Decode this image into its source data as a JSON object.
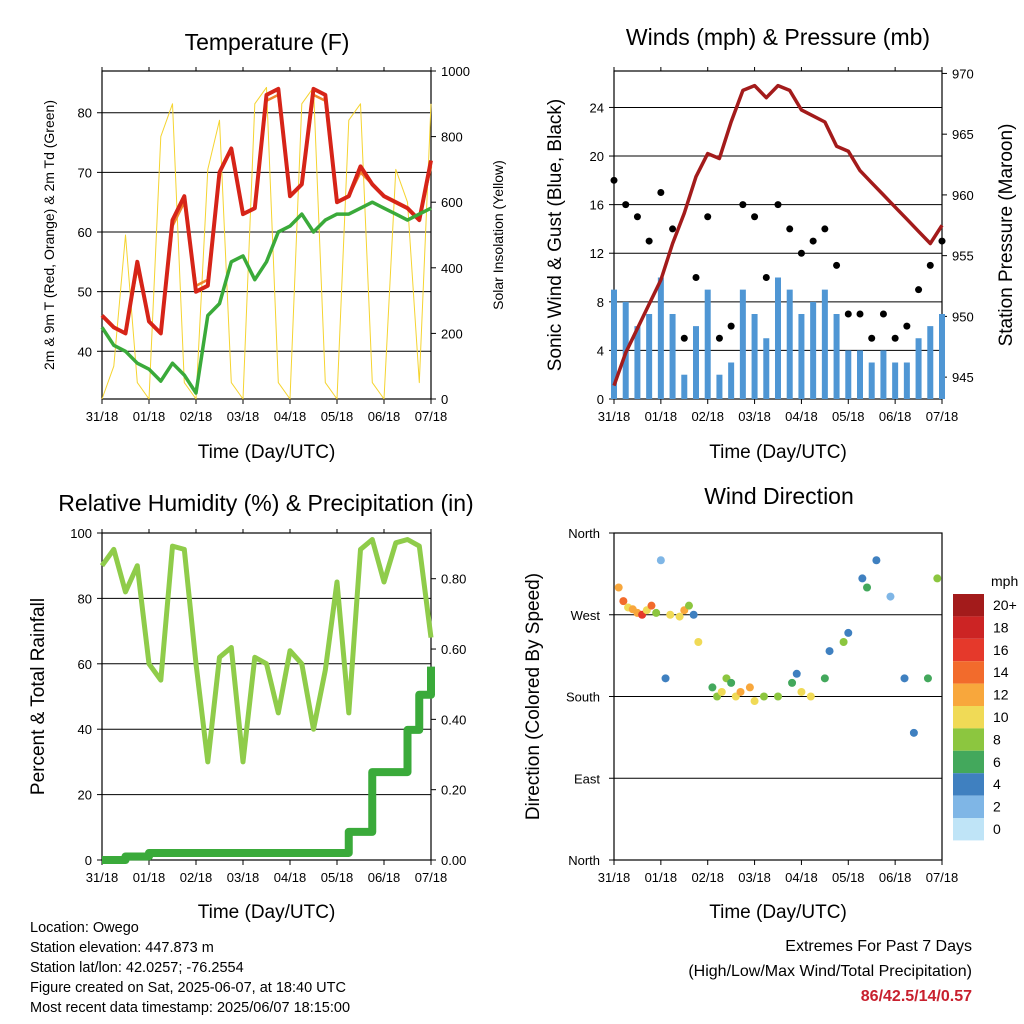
{
  "x_ticks": [
    "31/18",
    "01/18",
    "02/18",
    "03/18",
    "04/18",
    "05/18",
    "06/18",
    "07/18"
  ],
  "footer": {
    "location": "Location: Owego",
    "elevation": "Station elevation: 447.873 m",
    "latlon": "Station lat/lon: 42.0257; -76.2554",
    "created": "Figure created on Sat, 2025-06-07, at 18:40 UTC",
    "recent": "Most recent data timestamp: 2025/06/07 18:15:00"
  },
  "extremes": {
    "line1": "Extremes For Past 7 Days",
    "line2": "(High/Low/Max Wind/Total Precipitation)",
    "value": "86/42.5/14/0.57"
  },
  "colors": {
    "temp2m": "#d62418",
    "temp9m": "#f0842c",
    "dewpoint": "#3aaa3a",
    "solar": "#f5d430",
    "wind": "#4f96d4",
    "gust": "#000000",
    "pressure": "#a31b1b",
    "rh": "#8fcc4a",
    "rain": "#3aaa3a"
  },
  "chart_data": [
    {
      "type": "line",
      "title": "Temperature (F)",
      "xlabel": "Time (Day/UTC)",
      "ylabel": "2m & 9m T (Red, Orange) & 2m Td (Green)",
      "ylabel_right": "Solar Insolation (Yellow)",
      "x": [
        0,
        0.25,
        0.5,
        0.75,
        1.0,
        1.25,
        1.5,
        1.75,
        2.0,
        2.25,
        2.5,
        2.75,
        3.0,
        3.25,
        3.5,
        3.75,
        4.0,
        4.25,
        4.5,
        4.75,
        5.0,
        5.25,
        5.5,
        5.75,
        6.0,
        6.25,
        6.5,
        6.75,
        7.0
      ],
      "ylim": [
        32,
        87
      ],
      "ylim_right": [
        0,
        1000
      ],
      "yticks": [
        40,
        50,
        60,
        70,
        80
      ],
      "yticks_right": [
        0,
        200,
        400,
        600,
        800,
        1000
      ],
      "series": [
        {
          "name": "2m T",
          "axis": "left",
          "values": [
            46,
            44,
            43,
            55,
            45,
            43,
            62,
            66,
            50,
            51,
            70,
            74,
            63,
            64,
            83,
            84,
            66,
            68,
            84,
            83,
            65,
            66,
            71,
            68,
            66,
            65,
            64,
            62,
            72
          ]
        },
        {
          "name": "9m T",
          "axis": "left",
          "values": [
            46,
            44,
            43,
            54,
            45,
            43,
            61,
            65,
            51,
            52,
            70,
            74,
            63,
            64,
            82,
            83,
            66,
            68,
            83,
            82,
            65,
            66,
            70,
            68,
            66,
            65,
            64,
            62,
            71
          ]
        },
        {
          "name": "2m Td",
          "axis": "left",
          "values": [
            44,
            41,
            40,
            38,
            37,
            35,
            38,
            36,
            33,
            46,
            48,
            55,
            56,
            52,
            55,
            60,
            61,
            63,
            60,
            62,
            63,
            63,
            64,
            65,
            64,
            63,
            62,
            63,
            64
          ]
        },
        {
          "name": "Solar",
          "axis": "right",
          "values": [
            0,
            100,
            500,
            50,
            0,
            800,
            900,
            50,
            0,
            700,
            850,
            50,
            0,
            900,
            950,
            50,
            0,
            900,
            950,
            50,
            0,
            850,
            900,
            50,
            0,
            700,
            600,
            50,
            900
          ]
        }
      ]
    },
    {
      "type": "scatter",
      "title": "Winds (mph) & Pressure (mb)",
      "xlabel": "Time (Day/UTC)",
      "ylabel": "Sonic Wind & Gust (Blue, Black)",
      "ylabel_right": "Station Pressure (Maroon)",
      "x": [
        0,
        0.25,
        0.5,
        0.75,
        1.0,
        1.25,
        1.5,
        1.75,
        2.0,
        2.25,
        2.5,
        2.75,
        3.0,
        3.25,
        3.5,
        3.75,
        4.0,
        4.25,
        4.5,
        4.75,
        5.0,
        5.25,
        5.5,
        5.75,
        6.0,
        6.25,
        6.5,
        6.75,
        7.0
      ],
      "ylim": [
        0,
        27
      ],
      "ylim_right": [
        943.2,
        970.2
      ],
      "yticks": [
        0,
        4,
        8,
        12,
        16,
        20,
        24
      ],
      "yticks_right": [
        945,
        950,
        955,
        960,
        965,
        970
      ],
      "series": [
        {
          "name": "Sonic Wind",
          "axis": "left",
          "values": [
            9,
            8,
            6,
            7,
            10,
            7,
            2,
            6,
            9,
            2,
            3,
            9,
            7,
            5,
            10,
            9,
            7,
            8,
            9,
            7,
            4,
            4,
            3,
            4,
            3,
            3,
            5,
            6,
            7
          ]
        },
        {
          "name": "Gust",
          "axis": "left",
          "values": [
            18,
            16,
            15,
            13,
            17,
            14,
            5,
            10,
            15,
            5,
            6,
            16,
            15,
            10,
            16,
            14,
            12,
            13,
            14,
            11,
            7,
            7,
            5,
            7,
            5,
            6,
            9,
            11,
            13
          ]
        },
        {
          "name": "Pressure",
          "axis": "right",
          "values": [
            944.3,
            947,
            949,
            951,
            953,
            956,
            958.5,
            961.5,
            963.4,
            963,
            966,
            968.6,
            969,
            968,
            969,
            968.6,
            967,
            966.5,
            966,
            964,
            963.6,
            962,
            961,
            960,
            959,
            958,
            957,
            956,
            957.5
          ]
        }
      ]
    },
    {
      "type": "line",
      "title": "Relative Humidity (%) & Precipitation (in)",
      "xlabel": "Time (Day/UTC)",
      "ylabel": "Percent & Total Rainfall",
      "x": [
        0,
        0.25,
        0.5,
        0.75,
        1.0,
        1.25,
        1.5,
        1.75,
        2.0,
        2.25,
        2.5,
        2.75,
        3.0,
        3.25,
        3.5,
        3.75,
        4.0,
        4.25,
        4.5,
        4.75,
        5.0,
        5.25,
        5.5,
        5.75,
        6.0,
        6.25,
        6.5,
        6.75,
        7.0
      ],
      "ylim": [
        0,
        100
      ],
      "ylim_right": [
        0,
        0.93
      ],
      "yticks": [
        0,
        20,
        40,
        60,
        80,
        100
      ],
      "yticks_right": [
        0.0,
        0.2,
        0.4,
        0.6,
        0.8
      ],
      "series": [
        {
          "name": "RH",
          "axis": "left",
          "values": [
            90,
            95,
            82,
            90,
            60,
            55,
            96,
            95,
            60,
            30,
            62,
            65,
            30,
            62,
            60,
            45,
            64,
            60,
            40,
            58,
            85,
            45,
            95,
            98,
            85,
            97,
            98,
            96,
            68
          ]
        },
        {
          "name": "Precipitation",
          "axis": "right",
          "values": [
            0,
            0,
            0.01,
            0.01,
            0.02,
            0.02,
            0.02,
            0.02,
            0.02,
            0.02,
            0.02,
            0.02,
            0.02,
            0.02,
            0.02,
            0.02,
            0.02,
            0.02,
            0.02,
            0.02,
            0.02,
            0.08,
            0.08,
            0.25,
            0.25,
            0.25,
            0.37,
            0.47,
            0.55
          ]
        }
      ]
    },
    {
      "type": "scatter",
      "title": "Wind Direction",
      "xlabel": "Time (Day/UTC)",
      "ylabel": "Direction (Colored By Speed)",
      "yticks": [
        "North",
        "East",
        "South",
        "West",
        "North"
      ],
      "ylim": [
        0,
        360
      ],
      "legend_title": "mph",
      "legend_labels": [
        "20+",
        "18",
        "16",
        "14",
        "12",
        "10",
        "8",
        "6",
        "4",
        "2",
        "0"
      ],
      "legend_colors": [
        "#a31b1b",
        "#cc2424",
        "#e5392b",
        "#f26b2c",
        "#f8a73c",
        "#f0da56",
        "#8cc63f",
        "#43a85c",
        "#3f80c0",
        "#7fb6e6",
        "#bfe4f7"
      ],
      "x": [
        0.1,
        0.2,
        0.3,
        0.4,
        0.5,
        0.6,
        0.7,
        0.8,
        0.9,
        1.0,
        1.1,
        1.2,
        1.4,
        1.5,
        1.6,
        1.7,
        1.8,
        2.1,
        2.2,
        2.3,
        2.4,
        2.5,
        2.6,
        2.7,
        2.9,
        3.0,
        3.2,
        3.5,
        3.8,
        3.9,
        4.0,
        4.2,
        4.5,
        4.6,
        4.9,
        5.0,
        5.3,
        5.4,
        5.6,
        5.9,
        6.2,
        6.4,
        6.7,
        6.9
      ],
      "values": [
        300,
        285,
        278,
        276,
        272,
        270,
        275,
        280,
        272,
        330,
        200,
        270,
        268,
        275,
        280,
        270,
        240,
        190,
        180,
        185,
        200,
        195,
        180,
        185,
        190,
        175,
        180,
        180,
        195,
        205,
        185,
        180,
        200,
        230,
        240,
        250,
        310,
        300,
        330,
        290,
        200,
        140,
        200,
        310
      ],
      "speeds": [
        12,
        14,
        10,
        11,
        12,
        15,
        9,
        13,
        8,
        2,
        4,
        10,
        9,
        11,
        8,
        3,
        9,
        5,
        7,
        10,
        8,
        6,
        9,
        12,
        11,
        9,
        7,
        8,
        6,
        4,
        9,
        10,
        5,
        3,
        7,
        4,
        3,
        6,
        4,
        2,
        3,
        4,
        5,
        8
      ]
    }
  ]
}
